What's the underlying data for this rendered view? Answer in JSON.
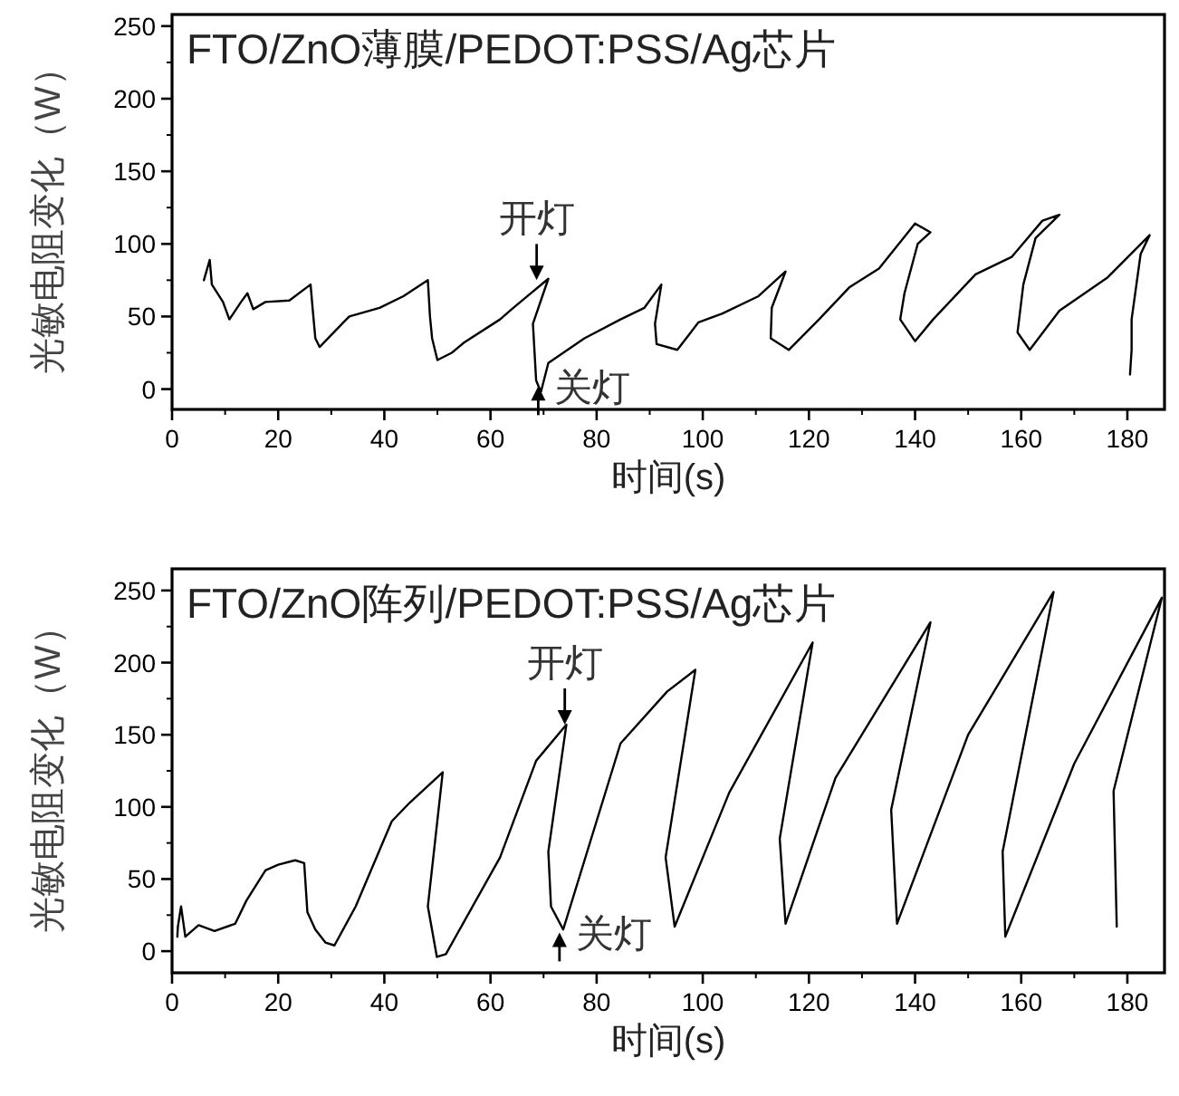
{
  "chart_data": [
    {
      "type": "line",
      "title": "FTO/ZnO薄膜/PEDOT:PSS/Ag芯片",
      "xlabel": "时间(s)",
      "ylabel": "光敏电阻变化（W）",
      "xlim": [
        0,
        187
      ],
      "ylim": [
        -14,
        258
      ],
      "xticks": [
        0,
        20,
        40,
        60,
        80,
        100,
        120,
        140,
        160,
        180
      ],
      "yticks": [
        0,
        50,
        100,
        150,
        200,
        250
      ],
      "grid": false,
      "series": [
        {
          "color": "#000000",
          "x": [
            6,
            7.1,
            7.5,
            9.6,
            10.8,
            13,
            14.2,
            15.3,
            17.6,
            22.1,
            26.1,
            26.5,
            27,
            27.8,
            32.3,
            33.4,
            39.1,
            43.6,
            48.2,
            48.6,
            49,
            50,
            52.7,
            55,
            61.8,
            64,
            66.3,
            70.9,
            68,
            68.6,
            69.5,
            70.9,
            77.7,
            84.5,
            89,
            92.2,
            91,
            91.3,
            95.2,
            99.2,
            103.7,
            110.5,
            115.6,
            113,
            112.8,
            116.2,
            121.9,
            127.6,
            133.2,
            140,
            142.9,
            140.5,
            138,
            137.2,
            140,
            143.4,
            151.4,
            158.2,
            164,
            167.2,
            162.7,
            160.4,
            159.3,
            161.6,
            167.2,
            176.3,
            184.2,
            182.5,
            180.8,
            180.8,
            180.5
          ],
          "values": [
            75,
            89,
            72,
            60,
            48,
            60,
            66,
            55,
            60,
            61,
            72,
            55,
            35,
            29,
            46,
            50,
            56,
            64,
            75,
            50,
            35,
            20,
            25,
            32,
            48,
            55,
            62,
            76,
            45,
            6,
            -2,
            18,
            35,
            48,
            56,
            72,
            45,
            31,
            27,
            46,
            52,
            64,
            81,
            56,
            35,
            27,
            48,
            70,
            83,
            114,
            108,
            100,
            66,
            48,
            33,
            48,
            79,
            91,
            116,
            120,
            104,
            72,
            39,
            27,
            54,
            77,
            106,
            93,
            48,
            27,
            10
          ]
        }
      ],
      "annotations": [
        {
          "text": "开灯",
          "x": 68.7,
          "y": 75
        },
        {
          "text": "关灯",
          "x": 69,
          "y": 2
        }
      ]
    },
    {
      "type": "line",
      "title": "FTO/ZnO阵列/PEDOT:PSS/Ag芯片",
      "xlabel": "时间(s)",
      "ylabel": "光敏电阻变化（W）",
      "xlim": [
        0,
        187
      ],
      "ylim": [
        -15,
        265
      ],
      "xticks": [
        0,
        20,
        40,
        60,
        80,
        100,
        120,
        140,
        160,
        180
      ],
      "yticks": [
        0,
        50,
        100,
        150,
        200,
        250
      ],
      "grid": false,
      "series": [
        {
          "color": "#000000",
          "x": [
            1,
            1.1,
            1.7,
            2.5,
            5,
            8,
            11.9,
            14,
            17.6,
            20,
            23.2,
            24.9,
            25.5,
            27,
            28.9,
            30.6,
            34.6,
            41.4,
            44.8,
            51,
            48.2,
            49.9,
            51.6,
            61.8,
            68.6,
            74.3,
            70.9,
            71.4,
            73.7,
            84.5,
            93.3,
            98.6,
            93,
            94.7,
            105,
            120.7,
            114.5,
            115.6,
            125,
            142.9,
            135.5,
            136.6,
            150,
            166.1,
            156.5,
            157,
            170,
            186.5,
            177.4,
            178
          ],
          "values": [
            10,
            17,
            31,
            10,
            18,
            14,
            19,
            35,
            56,
            60,
            63,
            61,
            27,
            15,
            6,
            4,
            31,
            90,
            103,
            124,
            31,
            -4,
            -2,
            65,
            132,
            157,
            69,
            31,
            15,
            144,
            180,
            195,
            65,
            17,
            110,
            214,
            78,
            19,
            120,
            228,
            98,
            19,
            150,
            249,
            69,
            10,
            130,
            245,
            111,
            17
          ]
        }
      ],
      "annotations": [
        {
          "text": "开灯",
          "x": 74,
          "y": 157
        },
        {
          "text": "关灯",
          "x": 73,
          "y": 13
        }
      ]
    }
  ]
}
